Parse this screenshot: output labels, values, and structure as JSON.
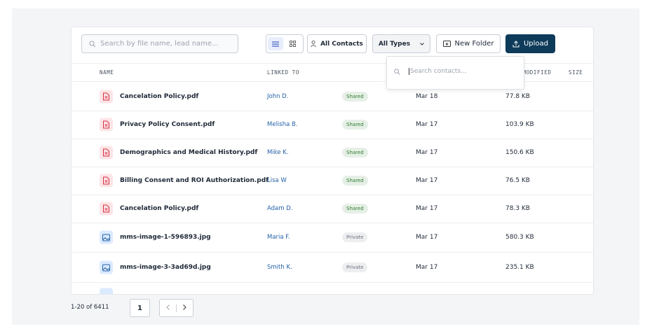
{
  "toolbar": {
    "search_placeholder": "Search by file name, lead name...",
    "contacts_button": "All Contacts",
    "types_select": "All Types",
    "new_folder": "New Folder",
    "upload": "Upload"
  },
  "dropdown": {
    "search_placeholder": "Search contacts..."
  },
  "table": {
    "columns": [
      "NAME",
      "LINKED TO",
      "LAST MODIFIED",
      "SIZE"
    ],
    "rows": [
      {
        "icon": "pdf",
        "name": "Cancelation Policy.pdf",
        "linked_to": "John D.",
        "status": "Shared",
        "status_color": "#2e7d32",
        "modified": "Mar 18",
        "size": "77.8 KB"
      },
      {
        "icon": "pdf",
        "name": "Privacy Policy Consent.pdf",
        "linked_to": "Melisha B.",
        "status": "Shared",
        "status_color": "#2e7d32",
        "modified": "Mar 17",
        "size": "103.9 KB"
      },
      {
        "icon": "pdf",
        "name": "Demographics and Medical History.pdf",
        "linked_to": "Mike K.",
        "status": "Shared",
        "status_color": "#2e7d32",
        "modified": "Mar 17",
        "size": "150.6 KB"
      },
      {
        "icon": "pdf",
        "name": "Billing Consent and ROI Authorization.pdf",
        "linked_to": "Lisa W",
        "status": "Shared",
        "status_color": "#2e7d32",
        "modified": "Mar 17",
        "size": "76.5 KB"
      },
      {
        "icon": "pdf",
        "name": "Cancelation Policy.pdf",
        "linked_to": "Adam D.",
        "status": "Shared",
        "status_color": "#2e7d32",
        "modified": "Mar 17",
        "size": "78.3 KB"
      },
      {
        "icon": "image",
        "name": "mms-image-1-596893.jpg",
        "linked_to": "Maria F.",
        "status": "Private",
        "status_color": "#6b7280",
        "modified": "Mar 17",
        "size": "580.3 KB"
      },
      {
        "icon": "image",
        "name": "mms-image-3-3ad69d.jpg",
        "linked_to": "Smith K.",
        "status": "Private",
        "status_color": "#6b7280",
        "modified": "Mar 17",
        "size": "235.1 KB"
      }
    ]
  },
  "pagination": {
    "range": "1-20 of 6411",
    "page": "1"
  }
}
